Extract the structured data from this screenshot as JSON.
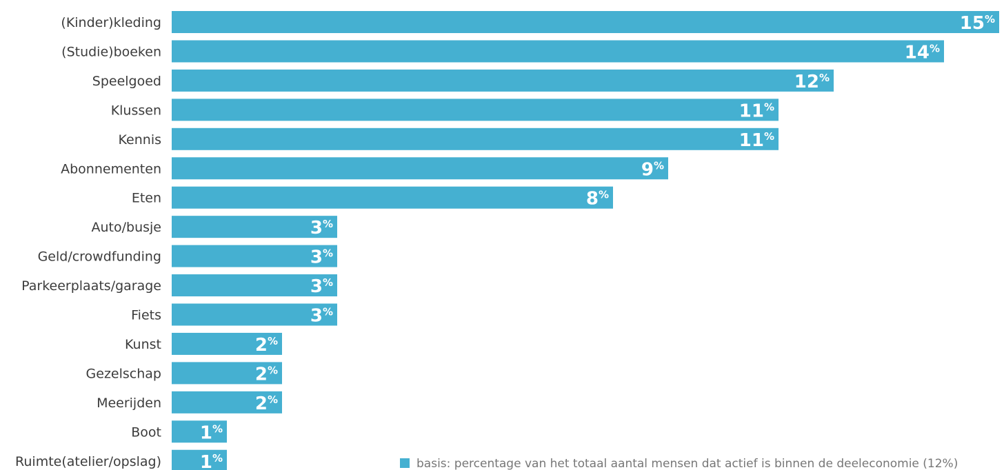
{
  "chart_data": {
    "type": "bar",
    "orientation": "horizontal",
    "categories": [
      "(Kinder)kleding",
      "(Studie)boeken",
      "Speelgoed",
      "Klussen",
      "Kennis",
      "Abonnementen",
      "Eten",
      "Auto/busje",
      "Geld/crowdfunding",
      "Parkeerplaats/garage",
      "Fiets",
      "Kunst",
      "Gezelschap",
      "Meerijden",
      "Boot",
      "Ruimte(atelier/opslag)"
    ],
    "values": [
      15,
      14,
      12,
      11,
      11,
      9,
      8,
      3,
      3,
      3,
      3,
      2,
      2,
      2,
      1,
      1
    ],
    "value_suffix": "%",
    "bar_color": "#45b0d1",
    "label_color": "#ffffff",
    "grid": false,
    "legend": {
      "position": "bottom-right",
      "text": "basis: percentage  van het totaal aantal mensen dat actief is binnen de deeleconomie (12%)",
      "color": "#45b0d1"
    }
  }
}
